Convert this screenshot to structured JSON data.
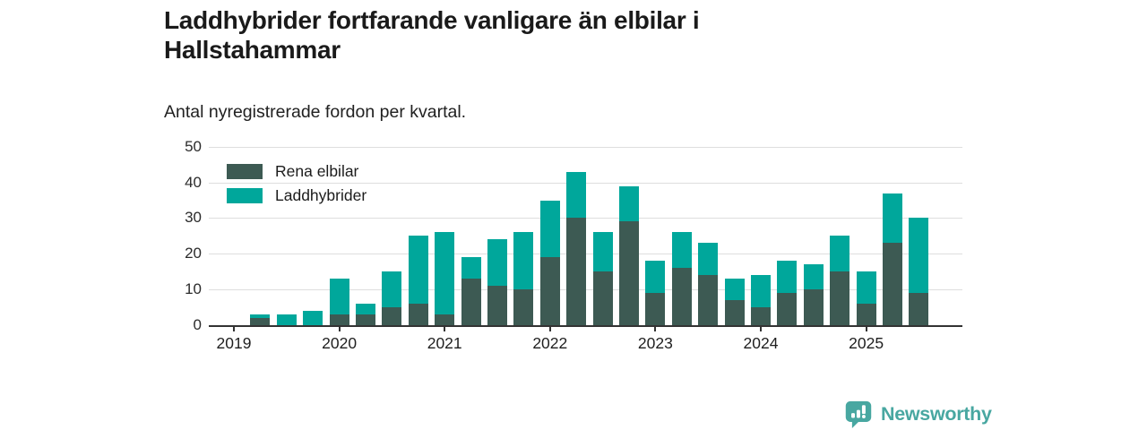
{
  "header": {
    "title": "Laddhybrider fortfarande vanligare än elbilar i Hallstahammar",
    "subtitle": "Antal nyregistrerade fordon per kvartal."
  },
  "chart_data": {
    "type": "bar",
    "stacked": true,
    "title": "Laddhybrider fortfarande vanligare än elbilar i Hallstahammar",
    "subtitle": "Antal nyregistrerade fordon per kvartal.",
    "categories": [
      "2019 Q2",
      "2019 Q3",
      "2019 Q4",
      "2020 Q1",
      "2020 Q2",
      "2020 Q3",
      "2020 Q4",
      "2021 Q1",
      "2021 Q2",
      "2021 Q3",
      "2021 Q4",
      "2022 Q1",
      "2022 Q2",
      "2022 Q3",
      "2022 Q4",
      "2023 Q1",
      "2023 Q2",
      "2023 Q3",
      "2023 Q4",
      "2024 Q1",
      "2024 Q2",
      "2024 Q3",
      "2024 Q4",
      "2025 Q1",
      "2025 Q2",
      "2025 Q3"
    ],
    "series": [
      {
        "name": "Rena elbilar",
        "color": "#3d5a53",
        "values": [
          2,
          0,
          0,
          3,
          3,
          5,
          6,
          3,
          13,
          11,
          10,
          19,
          30,
          15,
          29,
          9,
          16,
          14,
          7,
          5,
          9,
          10,
          15,
          6,
          23,
          9
        ]
      },
      {
        "name": "Laddhybrider",
        "color": "#00a79b",
        "values": [
          1,
          3,
          4,
          10,
          3,
          10,
          19,
          23,
          6,
          13,
          16,
          16,
          13,
          11,
          10,
          9,
          10,
          9,
          6,
          9,
          9,
          7,
          10,
          9,
          14,
          21
        ]
      }
    ],
    "totals": [
      3,
      3,
      4,
      13,
      6,
      15,
      25,
      26,
      19,
      24,
      26,
      35,
      43,
      26,
      39,
      18,
      26,
      23,
      13,
      14,
      18,
      17,
      25,
      15,
      37,
      30
    ],
    "x_year_ticks": [
      "2019",
      "2020",
      "2021",
      "2022",
      "2023",
      "2024",
      "2025"
    ],
    "y_ticks": [
      0,
      10,
      20,
      30,
      40,
      50
    ],
    "ylim": [
      0,
      50
    ],
    "grid": "horizontal",
    "legend_position": "inside-top-left"
  },
  "branding": {
    "logo_text": "Newsworthy",
    "logo_color": "#48a7a1",
    "logo_icon": "bar-chart-speech-bubble-icon"
  }
}
